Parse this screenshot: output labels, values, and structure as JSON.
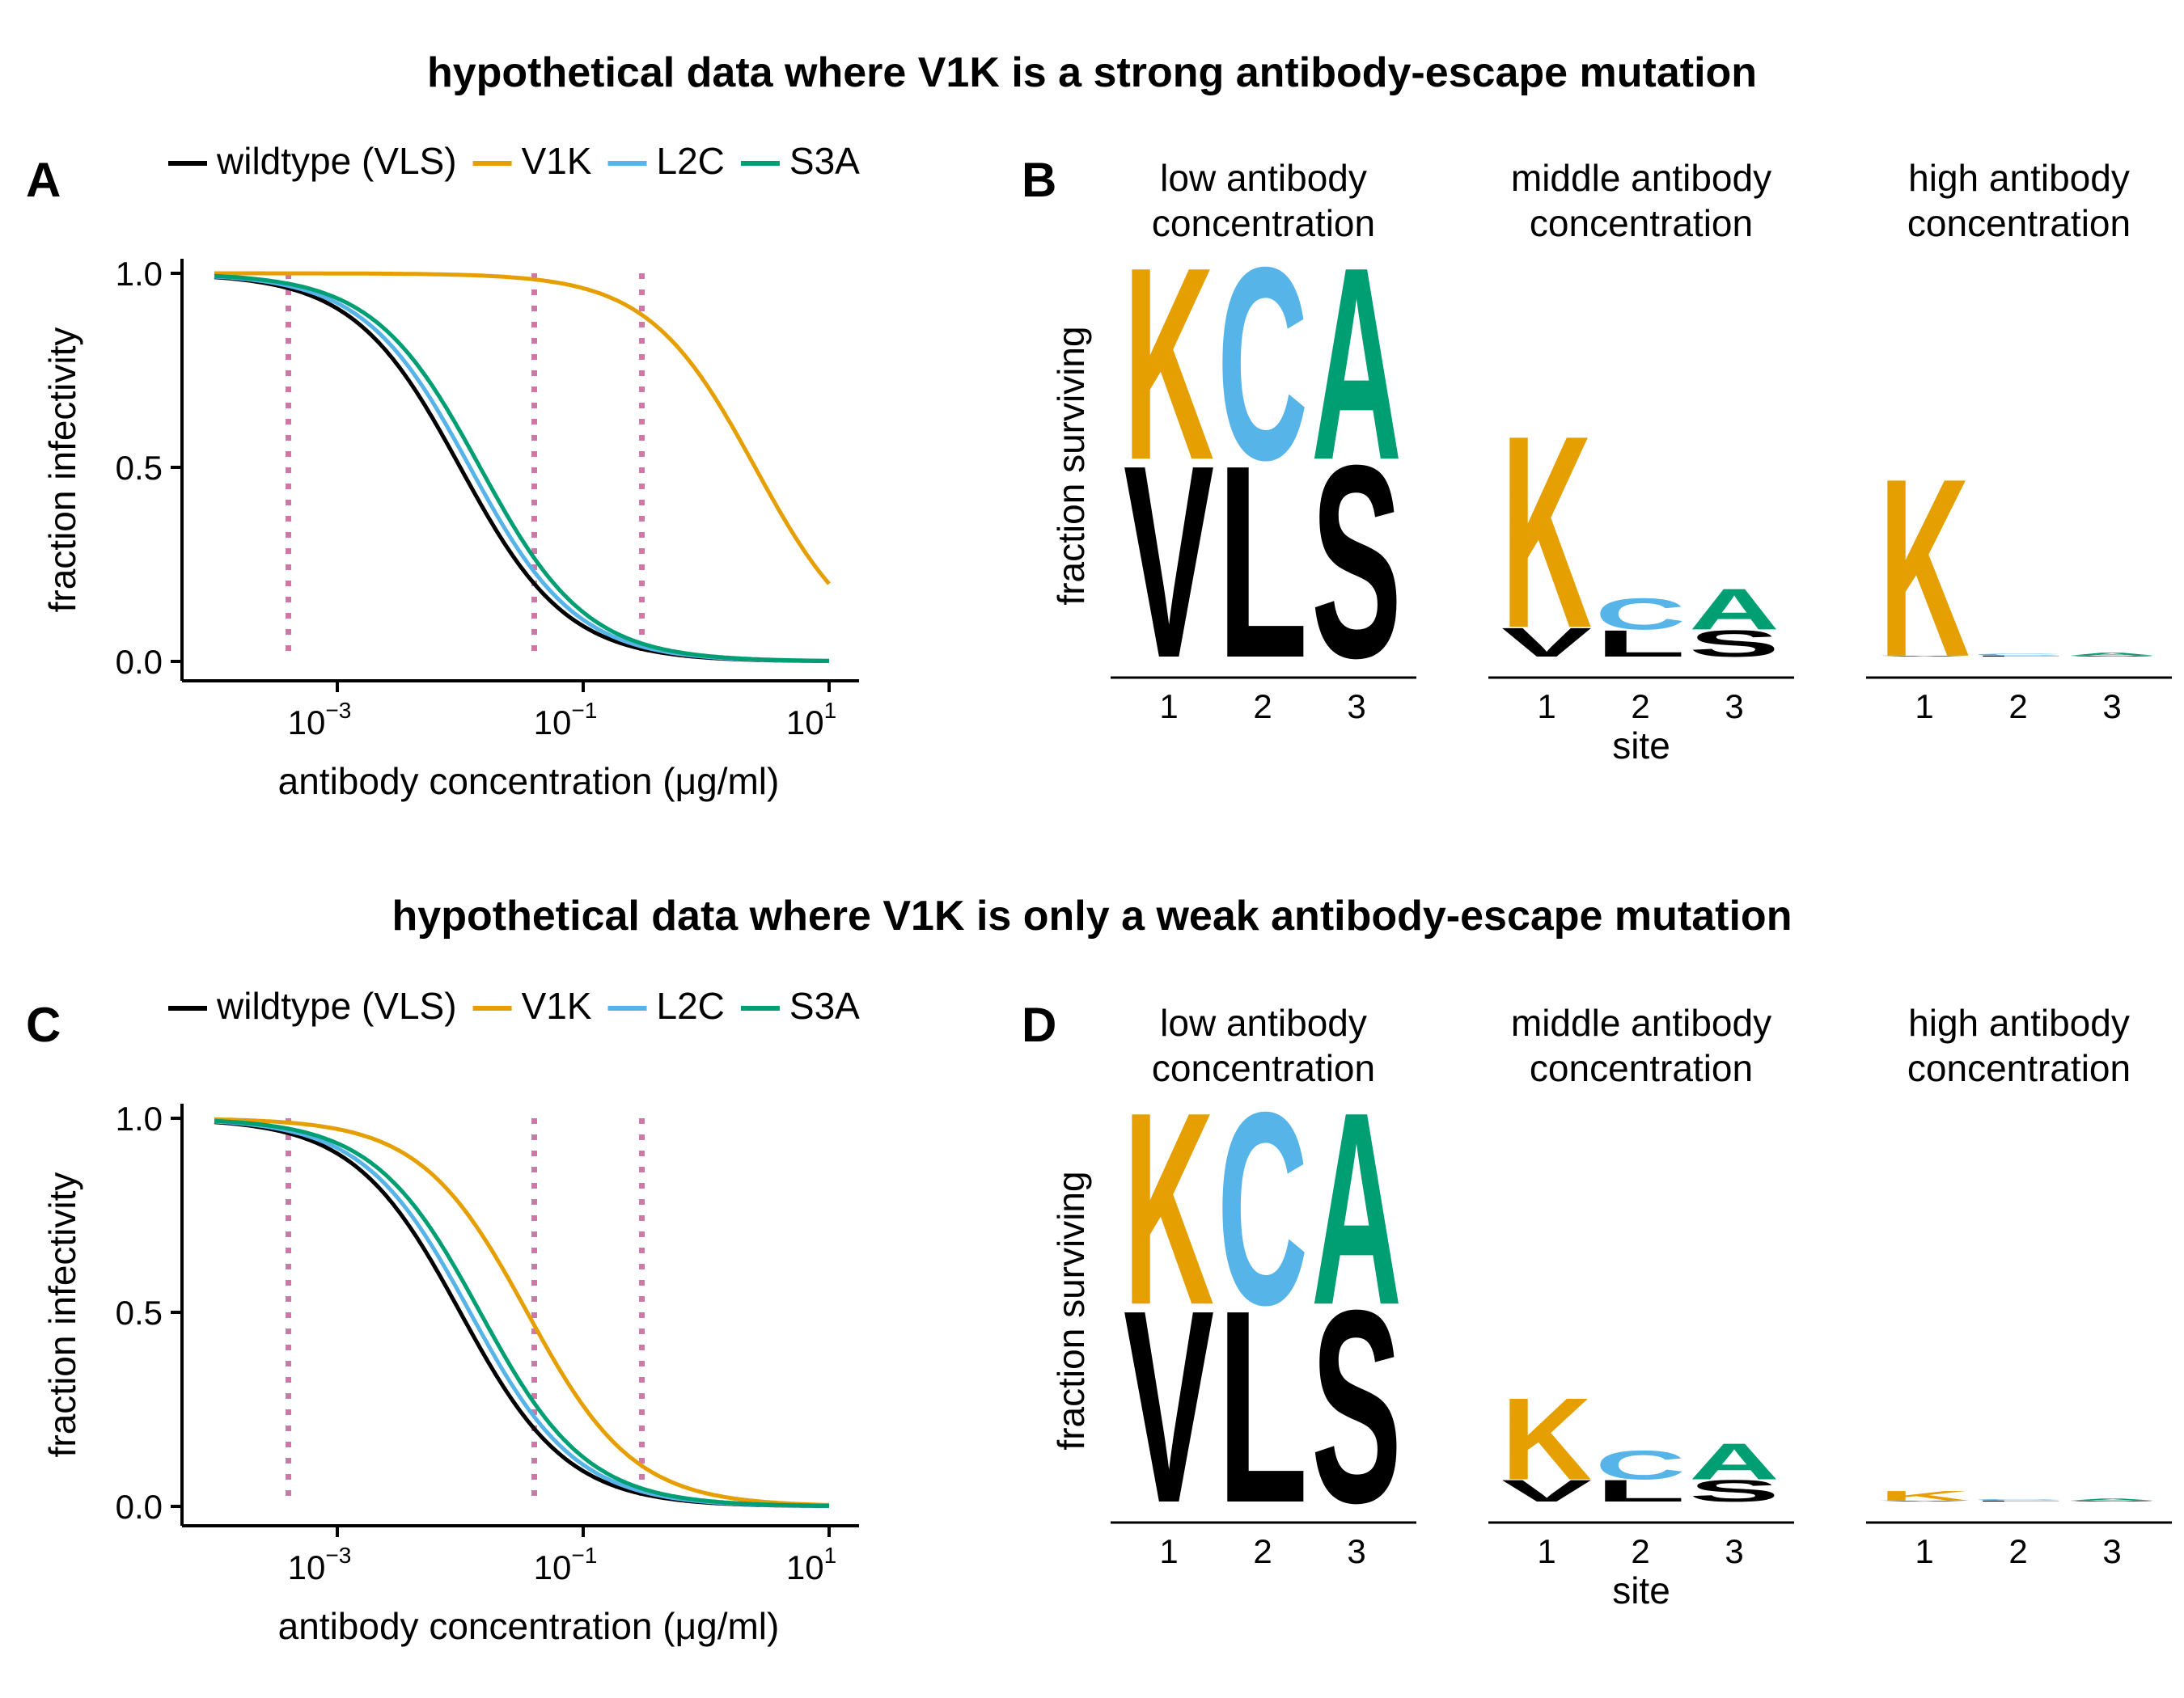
{
  "titles": {
    "top": "hypothetical data where V1K is a strong antibody-escape mutation",
    "bottom": "hypothetical data where V1K is only a weak antibody-escape mutation"
  },
  "panel_letters": [
    "A",
    "B",
    "C",
    "D"
  ],
  "colors": {
    "wildtype": "#000000",
    "V1K": "#E69F00",
    "L2C": "#56B4E9",
    "S3A": "#009E73",
    "concentration_marker": "#CC79A7"
  },
  "chart_data": [
    {
      "id": "A",
      "type": "line",
      "legend": [
        "wildtype (VLS)",
        "V1K",
        "L2C",
        "S3A"
      ],
      "legend_position": "top",
      "xlabel": "antibody concentration (μg/ml)",
      "ylabel": "fraction infectivity",
      "xscale": "log",
      "xlim": [
        0.0001,
        10
      ],
      "ylim": [
        0,
        1
      ],
      "xticks": [
        {
          "base": "10",
          "exp": "−3",
          "value": 0.001
        },
        {
          "base": "10",
          "exp": "−1",
          "value": 0.1
        },
        {
          "base": "10",
          "exp": "1",
          "value": 10
        }
      ],
      "yticks": [
        {
          "label": "0.0",
          "value": 0
        },
        {
          "label": "0.5",
          "value": 0.5
        },
        {
          "label": "1.0",
          "value": 1
        }
      ],
      "concentration_markers": [
        0.0004,
        0.04,
        0.3
      ],
      "grid": false,
      "series": [
        {
          "name": "wildtype (VLS)",
          "color_key": "wildtype",
          "ic50": 0.01
        },
        {
          "name": "V1K",
          "color_key": "V1K",
          "ic50": 2.5
        },
        {
          "name": "L2C",
          "color_key": "L2C",
          "ic50": 0.012
        },
        {
          "name": "S3A",
          "color_key": "S3A",
          "ic50": 0.0145
        }
      ]
    },
    {
      "id": "B",
      "type": "logo",
      "ylabel": "fraction surviving",
      "xlabel": "site",
      "sites": [
        "1",
        "2",
        "3"
      ],
      "facets": [
        {
          "title": [
            "low antibody",
            "concentration"
          ],
          "stacks": [
            [
              {
                "l": "V",
                "h": 0.4,
                "c": "wildtype"
              },
              {
                "l": "K",
                "h": 0.4,
                "c": "V1K"
              }
            ],
            [
              {
                "l": "L",
                "h": 0.4,
                "c": "wildtype"
              },
              {
                "l": "C",
                "h": 0.4,
                "c": "L2C"
              }
            ],
            [
              {
                "l": "S",
                "h": 0.4,
                "c": "wildtype"
              },
              {
                "l": "A",
                "h": 0.4,
                "c": "S3A"
              }
            ]
          ]
        },
        {
          "title": [
            "middle antibody",
            "concentration"
          ],
          "stacks": [
            [
              {
                "l": "V",
                "h": 0.06,
                "c": "wildtype"
              },
              {
                "l": "K",
                "h": 0.4,
                "c": "V1K"
              }
            ],
            [
              {
                "l": "L",
                "h": 0.055,
                "c": "wildtype"
              },
              {
                "l": "C",
                "h": 0.065,
                "c": "L2C"
              }
            ],
            [
              {
                "l": "S",
                "h": 0.055,
                "c": "wildtype"
              },
              {
                "l": "A",
                "h": 0.085,
                "c": "S3A"
              }
            ]
          ]
        },
        {
          "title": [
            "high antibody",
            "concentration"
          ],
          "stacks": [
            [
              {
                "l": "V",
                "h": 0.002,
                "c": "wildtype"
              },
              {
                "l": "K",
                "h": 0.37,
                "c": "V1K"
              }
            ],
            [
              {
                "l": "L",
                "h": 0.002,
                "c": "wildtype"
              },
              {
                "l": "C",
                "h": 0.004,
                "c": "L2C"
              }
            ],
            [
              {
                "l": "S",
                "h": 0.002,
                "c": "wildtype"
              },
              {
                "l": "A",
                "h": 0.006,
                "c": "S3A"
              }
            ]
          ]
        }
      ]
    },
    {
      "id": "C",
      "type": "line",
      "legend": [
        "wildtype (VLS)",
        "V1K",
        "L2C",
        "S3A"
      ],
      "legend_position": "top",
      "xlabel": "antibody concentration (μg/ml)",
      "ylabel": "fraction infectivity",
      "xscale": "log",
      "xlim": [
        0.0001,
        10
      ],
      "ylim": [
        0,
        1
      ],
      "xticks": [
        {
          "base": "10",
          "exp": "−3",
          "value": 0.001
        },
        {
          "base": "10",
          "exp": "−1",
          "value": 0.1
        },
        {
          "base": "10",
          "exp": "1",
          "value": 10
        }
      ],
      "yticks": [
        {
          "label": "0.0",
          "value": 0
        },
        {
          "label": "0.5",
          "value": 0.5
        },
        {
          "label": "1.0",
          "value": 1
        }
      ],
      "concentration_markers": [
        0.0004,
        0.04,
        0.3
      ],
      "grid": false,
      "series": [
        {
          "name": "wildtype (VLS)",
          "color_key": "wildtype",
          "ic50": 0.01
        },
        {
          "name": "V1K",
          "color_key": "V1K",
          "ic50": 0.035
        },
        {
          "name": "L2C",
          "color_key": "L2C",
          "ic50": 0.012
        },
        {
          "name": "S3A",
          "color_key": "S3A",
          "ic50": 0.0145
        }
      ]
    },
    {
      "id": "D",
      "type": "logo",
      "ylabel": "fraction surviving",
      "xlabel": "site",
      "sites": [
        "1",
        "2",
        "3"
      ],
      "facets": [
        {
          "title": [
            "low antibody",
            "concentration"
          ],
          "stacks": [
            [
              {
                "l": "V",
                "h": 0.4,
                "c": "wildtype"
              },
              {
                "l": "K",
                "h": 0.4,
                "c": "V1K"
              }
            ],
            [
              {
                "l": "L",
                "h": 0.4,
                "c": "wildtype"
              },
              {
                "l": "C",
                "h": 0.4,
                "c": "L2C"
              }
            ],
            [
              {
                "l": "S",
                "h": 0.4,
                "c": "wildtype"
              },
              {
                "l": "A",
                "h": 0.4,
                "c": "S3A"
              }
            ]
          ]
        },
        {
          "title": [
            "middle antibody",
            "concentration"
          ],
          "stacks": [
            [
              {
                "l": "V",
                "h": 0.045,
                "c": "wildtype"
              },
              {
                "l": "K",
                "h": 0.17,
                "c": "V1K"
              }
            ],
            [
              {
                "l": "L",
                "h": 0.045,
                "c": "wildtype"
              },
              {
                "l": "C",
                "h": 0.06,
                "c": "L2C"
              }
            ],
            [
              {
                "l": "S",
                "h": 0.045,
                "c": "wildtype"
              },
              {
                "l": "A",
                "h": 0.075,
                "c": "S3A"
              }
            ]
          ]
        },
        {
          "title": [
            "high antibody",
            "concentration"
          ],
          "stacks": [
            [
              {
                "l": "V",
                "h": 0.002,
                "c": "wildtype"
              },
              {
                "l": "K",
                "h": 0.02,
                "c": "V1K"
              }
            ],
            [
              {
                "l": "L",
                "h": 0.002,
                "c": "wildtype"
              },
              {
                "l": "C",
                "h": 0.003,
                "c": "L2C"
              }
            ],
            [
              {
                "l": "S",
                "h": 0.002,
                "c": "wildtype"
              },
              {
                "l": "A",
                "h": 0.004,
                "c": "S3A"
              }
            ]
          ]
        }
      ]
    }
  ]
}
